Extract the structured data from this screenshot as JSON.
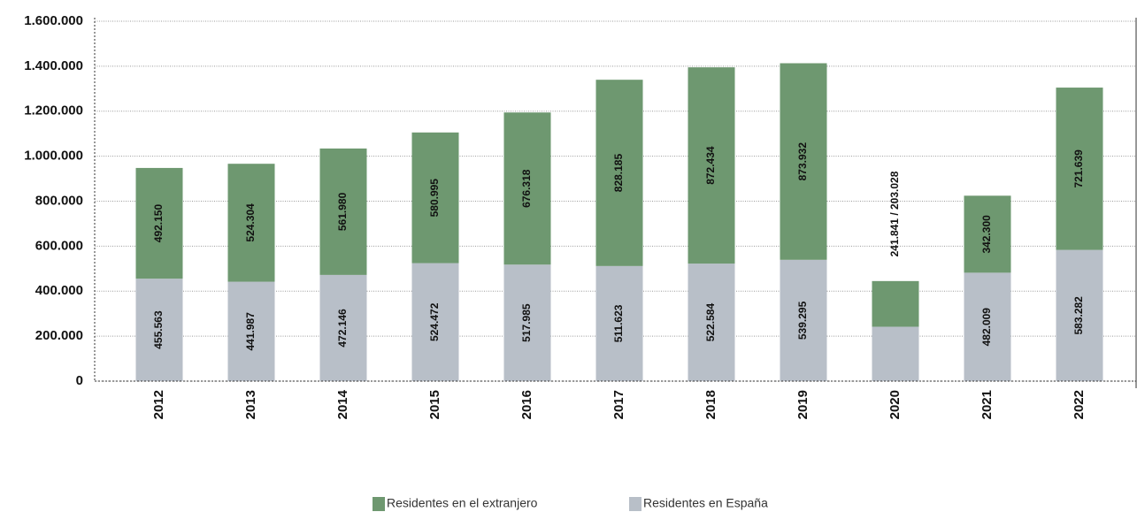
{
  "chart_data": {
    "type": "bar",
    "stacked": true,
    "categories": [
      "2012",
      "2013",
      "2014",
      "2015",
      "2016",
      "2017",
      "2018",
      "2019",
      "2020",
      "2021",
      "2022"
    ],
    "series": [
      {
        "name": "Residentes en España",
        "color": "#b8bfc8",
        "values": [
          455563,
          441987,
          472146,
          524472,
          517985,
          511623,
          522584,
          539295,
          241841,
          482009,
          583282
        ],
        "value_labels": [
          "455.563",
          "441.987",
          "472.146",
          "524.472",
          "517.985",
          "511.623",
          "522.584",
          "539.295",
          null,
          "482.009",
          "583.282"
        ]
      },
      {
        "name": "Residentes en el extranjero",
        "color": "#6e9870",
        "values": [
          492150,
          524304,
          561980,
          580995,
          676318,
          828185,
          872434,
          873932,
          203028,
          342300,
          721639
        ],
        "value_labels": [
          "492.150",
          "524.304",
          "561.980",
          "580.995",
          "676.318",
          "828.185",
          "872.434",
          "873.932",
          null,
          "342.300",
          "721.639"
        ]
      }
    ],
    "annotations": [
      "241.841 / 203.028"
    ],
    "ylim": [
      0,
      1600000
    ],
    "yticks": [
      0,
      {
        "value": 200000,
        "label": "200.000"
      },
      {
        "value": 400000,
        "label": "400.000"
      },
      {
        "value": 600000,
        "label": "600.000"
      },
      {
        "value": 800000,
        "label": "800.000"
      },
      {
        "value": 1000000,
        "label": "1.000.000"
      },
      {
        "value": 1200000,
        "label": "1.200.000"
      },
      {
        "value": 1400000,
        "label": "1.400.000"
      },
      {
        "value": 1600000,
        "label": "1.600.000"
      }
    ],
    "grid": true,
    "legend": "bottom"
  }
}
